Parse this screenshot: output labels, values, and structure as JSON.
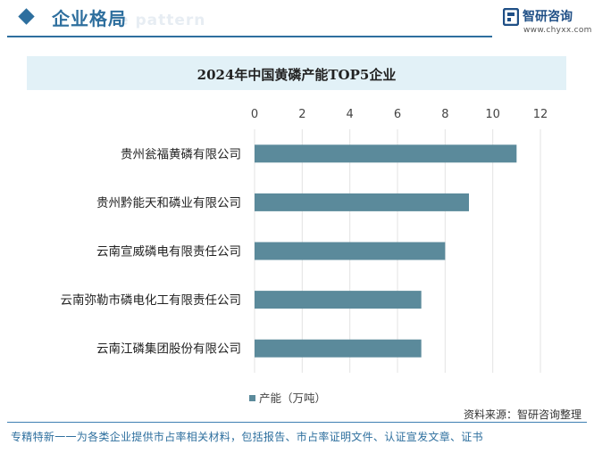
{
  "header": {
    "title": "企业格局",
    "ghost_text": "e pattern",
    "brand_name": "智研咨询",
    "brand_url": "www.chyxx.com"
  },
  "source": "资料来源：智研咨询整理",
  "footer": "专精特新一一为各类企业提供市占率相关材料，包括报告、市占率证明文件、认证宣发文章、证书",
  "colors": {
    "accent": "#2e6f9e",
    "bar": "#5b8a9b",
    "title_bg": "#e2f1f7",
    "grid": "#e3e3e3"
  },
  "chart_data": {
    "type": "bar",
    "orientation": "horizontal",
    "title": "2024年中国黄磷产能TOP5企业",
    "categories": [
      "贵州瓮福黄磷有限公司",
      "贵州黔能天和磷业有限公司",
      "云南宣威磷电有限责任公司",
      "云南弥勒市磷电化工有限责任公司",
      "云南江磷集团股份有限公司"
    ],
    "series": [
      {
        "name": "产能（万吨）",
        "values": [
          11,
          9,
          8,
          7,
          7
        ]
      }
    ],
    "xlim": [
      0,
      12
    ],
    "xticks": [
      "0",
      "2",
      "4",
      "6",
      "8",
      "10",
      "12"
    ],
    "x_axis_position": "top",
    "grid": true,
    "legend": "bottom-center"
  }
}
